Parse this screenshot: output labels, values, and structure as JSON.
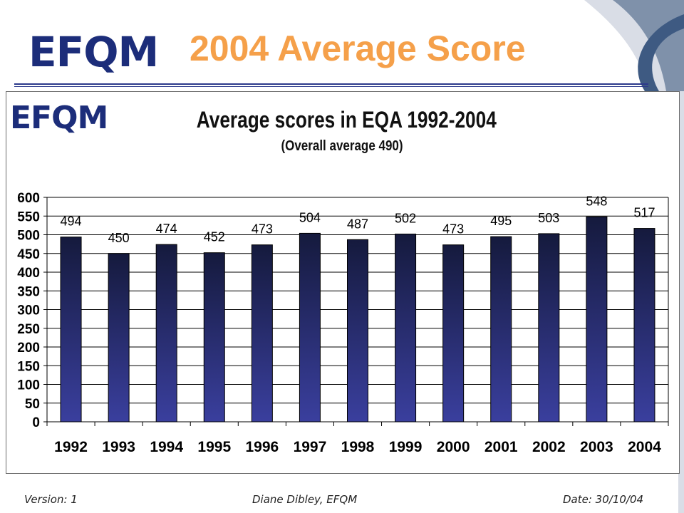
{
  "slide": {
    "title": "2004 Average Score",
    "logo_text": "EFQM",
    "footer": {
      "version": "Version: 1",
      "author": "Diane Dibley, EFQM",
      "date": "Date: 30/10/04"
    },
    "colors": {
      "title": "#f5a04a",
      "brand": "#1c2d7a",
      "bar_top": "#151a3d",
      "bar_bottom": "#3a3f9e"
    }
  },
  "chart_data": {
    "type": "bar",
    "title": "Average scores in EQA 1992-2004",
    "subtitle": "(Overall average 490)",
    "logo_text": "EFQM",
    "categories": [
      "1992",
      "1993",
      "1994",
      "1995",
      "1996",
      "1997",
      "1998",
      "1999",
      "2000",
      "2001",
      "2002",
      "2003",
      "2004"
    ],
    "values": [
      494,
      450,
      474,
      452,
      473,
      504,
      487,
      502,
      473,
      495,
      503,
      548,
      517
    ],
    "ylim": [
      0,
      600
    ],
    "yticks": [
      0,
      50,
      100,
      150,
      200,
      250,
      300,
      350,
      400,
      450,
      500,
      550,
      600
    ],
    "grid": true,
    "data_labels": true,
    "xlabel": "",
    "ylabel": ""
  }
}
